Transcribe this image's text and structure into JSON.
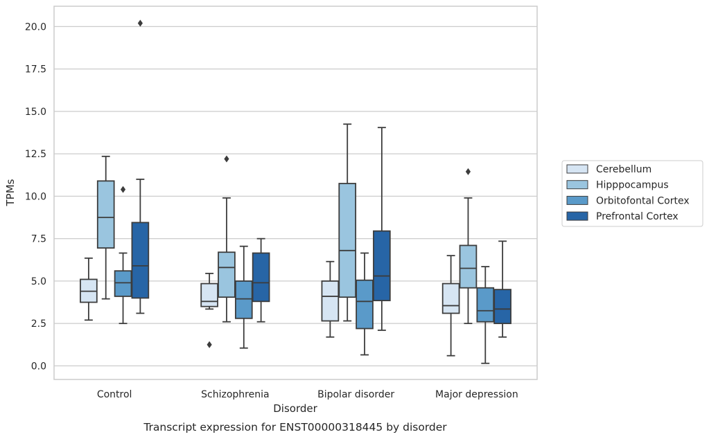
{
  "chart_data": {
    "type": "box",
    "caption": "Transcript expression for ENST00000318445 by disorder",
    "xlabel": "Disorder",
    "ylabel": "TPMs",
    "ylim": [
      -0.8,
      21.2
    ],
    "yticks": [
      "0.0",
      "2.5",
      "5.0",
      "7.5",
      "10.0",
      "12.5",
      "15.0",
      "17.5",
      "20.0"
    ],
    "grid": "horizontal",
    "legend_position": "right",
    "categories": [
      "Control",
      "Schizophrenia",
      "Bipolar disorder",
      "Major depression"
    ],
    "series": [
      {
        "name": "Cerebellum",
        "color": "#d6e5f3",
        "boxes": [
          {
            "whisker_low": 2.7,
            "q1": 3.75,
            "median": 4.4,
            "q3": 5.1,
            "whisker_high": 6.35,
            "outliers": []
          },
          {
            "whisker_low": 3.35,
            "q1": 3.5,
            "median": 3.8,
            "q3": 4.85,
            "whisker_high": 5.45,
            "outliers": [
              1.25
            ]
          },
          {
            "whisker_low": 1.7,
            "q1": 2.65,
            "median": 4.1,
            "q3": 5.0,
            "whisker_high": 6.15,
            "outliers": []
          },
          {
            "whisker_low": 0.6,
            "q1": 3.1,
            "median": 3.55,
            "q3": 4.85,
            "whisker_high": 6.5,
            "outliers": []
          }
        ]
      },
      {
        "name": "Hipppocampus",
        "color": "#9ac5df",
        "boxes": [
          {
            "whisker_low": 3.95,
            "q1": 6.95,
            "median": 8.75,
            "q3": 10.9,
            "whisker_high": 12.35,
            "outliers": []
          },
          {
            "whisker_low": 2.6,
            "q1": 4.05,
            "median": 5.8,
            "q3": 6.7,
            "whisker_high": 9.9,
            "outliers": [
              12.2
            ]
          },
          {
            "whisker_low": 2.65,
            "q1": 4.05,
            "median": 6.8,
            "q3": 10.75,
            "whisker_high": 14.25,
            "outliers": []
          },
          {
            "whisker_low": 2.5,
            "q1": 4.6,
            "median": 5.75,
            "q3": 7.1,
            "whisker_high": 9.9,
            "outliers": [
              11.45
            ]
          }
        ]
      },
      {
        "name": "Orbitofontal Cortex",
        "color": "#5a9ac9",
        "boxes": [
          {
            "whisker_low": 2.5,
            "q1": 4.1,
            "median": 4.9,
            "q3": 5.6,
            "whisker_high": 6.65,
            "outliers": [
              10.4
            ]
          },
          {
            "whisker_low": 1.05,
            "q1": 2.8,
            "median": 3.95,
            "q3": 5.0,
            "whisker_high": 7.05,
            "outliers": []
          },
          {
            "whisker_low": 0.65,
            "q1": 2.2,
            "median": 3.8,
            "q3": 5.05,
            "whisker_high": 6.65,
            "outliers": []
          },
          {
            "whisker_low": 0.15,
            "q1": 2.6,
            "median": 3.25,
            "q3": 4.6,
            "whisker_high": 5.85,
            "outliers": []
          }
        ]
      },
      {
        "name": "Prefrontal Cortex",
        "color": "#2765a6",
        "boxes": [
          {
            "whisker_low": 3.1,
            "q1": 4.0,
            "median": 5.9,
            "q3": 8.45,
            "whisker_high": 11.0,
            "outliers": [
              20.2
            ]
          },
          {
            "whisker_low": 2.6,
            "q1": 3.8,
            "median": 4.9,
            "q3": 6.65,
            "whisker_high": 7.5,
            "outliers": []
          },
          {
            "whisker_low": 2.1,
            "q1": 3.85,
            "median": 5.3,
            "q3": 7.95,
            "whisker_high": 14.05,
            "outliers": []
          },
          {
            "whisker_low": 1.7,
            "q1": 2.5,
            "median": 3.35,
            "q3": 4.5,
            "whisker_high": 7.35,
            "outliers": []
          }
        ]
      }
    ]
  }
}
